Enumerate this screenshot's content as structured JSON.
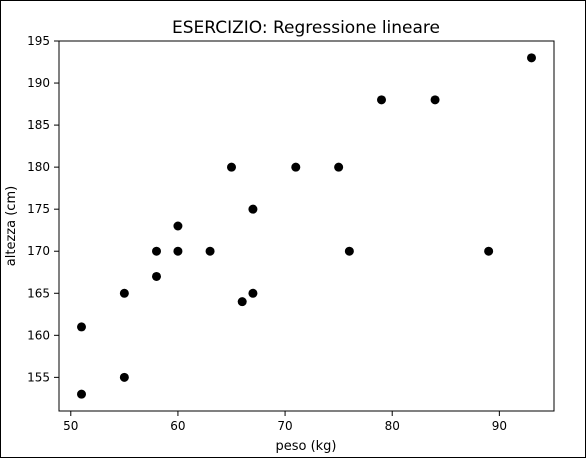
{
  "chart_data": {
    "type": "scatter",
    "title": "ESERCIZIO: Regressione lineare",
    "xlabel": "peso (kg)",
    "ylabel": "altezza (cm)",
    "xlim": [
      48.9,
      95.1
    ],
    "ylim": [
      151.0,
      195.0
    ],
    "xticks": [
      50,
      60,
      70,
      80,
      90
    ],
    "yticks": [
      155,
      160,
      165,
      170,
      175,
      180,
      185,
      190,
      195
    ],
    "grid": false,
    "marker_color": "#000000",
    "points": [
      {
        "x": 51,
        "y": 153
      },
      {
        "x": 51,
        "y": 161
      },
      {
        "x": 55,
        "y": 155
      },
      {
        "x": 55,
        "y": 165
      },
      {
        "x": 58,
        "y": 167
      },
      {
        "x": 58,
        "y": 170
      },
      {
        "x": 60,
        "y": 170
      },
      {
        "x": 60,
        "y": 173
      },
      {
        "x": 63,
        "y": 170
      },
      {
        "x": 65,
        "y": 180
      },
      {
        "x": 66,
        "y": 164
      },
      {
        "x": 67,
        "y": 165
      },
      {
        "x": 67,
        "y": 175
      },
      {
        "x": 71,
        "y": 180
      },
      {
        "x": 75,
        "y": 180
      },
      {
        "x": 76,
        "y": 170
      },
      {
        "x": 79,
        "y": 188
      },
      {
        "x": 84,
        "y": 188
      },
      {
        "x": 89,
        "y": 170
      },
      {
        "x": 93,
        "y": 193
      }
    ]
  }
}
